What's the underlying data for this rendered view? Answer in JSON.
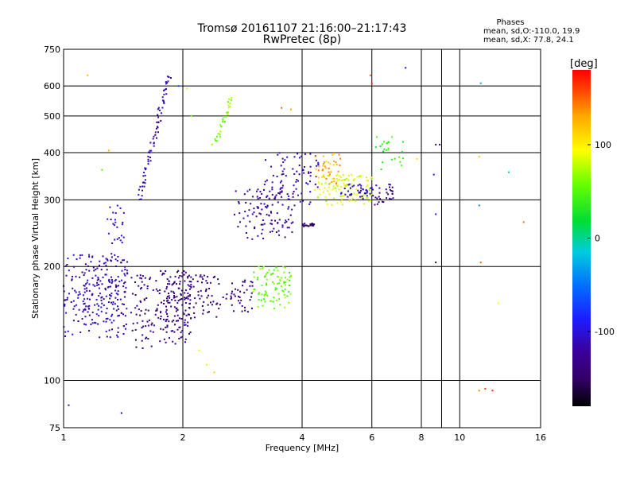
{
  "chart_data": {
    "type": "scatter",
    "title": "Tromsø 20161107 21:16:00–21:17:43",
    "subtitle": "RwPretec (8p)",
    "xlabel": "Frequency [MHz]",
    "ylabel": "Stationary phase Virtual Height [km]",
    "x_scale": "log",
    "y_scale": "log",
    "xlim": [
      1,
      16
    ],
    "ylim": [
      75,
      750
    ],
    "grid": true,
    "x_ticks": [
      1,
      2,
      4,
      6,
      8,
      10,
      16
    ],
    "x_tick_labels": [
      "1",
      "2",
      "4",
      "6",
      "8",
      "10",
      "16"
    ],
    "y_ticks": [
      75,
      100,
      200,
      300,
      400,
      500,
      600,
      750
    ],
    "y_tick_labels": [
      "75",
      "100",
      "200",
      "300",
      "400",
      "500",
      "600",
      "750"
    ],
    "stats": {
      "header": "Phases",
      "line1": "mean, sd,O:-110.0, 19.9",
      "line2": "mean, sd,X:  77.8, 24.1"
    },
    "colorbar": {
      "label": "[deg]",
      "range": [
        -180,
        180
      ],
      "ticks": [
        100,
        0,
        -100
      ],
      "tick_labels": [
        "100",
        "0",
        "-100"
      ]
    },
    "series": [
      {
        "name": "",
        "clusters": [
          {
            "x": [
              1.0,
              1.45
            ],
            "y": [
              130,
              215
            ],
            "phase": -118,
            "count": 260
          },
          {
            "x": [
              1.28,
              1.42
            ],
            "y": [
              215,
              290
            ],
            "phase": -110,
            "count": 25
          },
          {
            "x": [
              1.48,
              1.7
            ],
            "y": [
              120,
              190
            ],
            "phase": -140,
            "count": 60
          },
          {
            "x": [
              1.7,
              2.1
            ],
            "y": [
              125,
              195
            ],
            "phase": -138,
            "count": 170
          },
          {
            "x": [
              2.05,
              2.5
            ],
            "y": [
              145,
              190
            ],
            "phase": -142,
            "count": 55
          },
          {
            "x": [
              2.5,
              3.0
            ],
            "y": [
              150,
              185
            ],
            "phase": -140,
            "count": 40
          },
          {
            "x": [
              3.0,
              3.75
            ],
            "y": [
              155,
              200
            ],
            "phase": 55,
            "count": 90
          },
          {
            "x": [
              2.7,
              3.8
            ],
            "y": [
              235,
              320
            ],
            "phase": -128,
            "count": 110
          },
          {
            "x": [
              3.2,
              4.4
            ],
            "y": [
              290,
              400
            ],
            "phase": -118,
            "count": 80
          },
          {
            "x": [
              4.0,
              4.3
            ],
            "y": [
              255,
              260
            ],
            "phase": -150,
            "count": 20
          },
          {
            "x": [
              4.3,
              6.0
            ],
            "y": [
              290,
              350
            ],
            "phase": 85,
            "count": 110
          },
          {
            "x": [
              4.3,
              5.0
            ],
            "y": [
              330,
              400
            ],
            "phase": 125,
            "count": 40
          },
          {
            "x": [
              5.0,
              6.0
            ],
            "y": [
              300,
              330
            ],
            "phase": -108,
            "count": 40
          },
          {
            "x": [
              6.0,
              6.8
            ],
            "y": [
              290,
              330
            ],
            "phase": -140,
            "count": 30
          },
          {
            "x": [
              6.0,
              7.2
            ],
            "y": [
              360,
              440
            ],
            "phase": 40,
            "count": 25
          }
        ],
        "traces": [
          {
            "x": [
              1.55,
              1.85
            ],
            "y": [
              300,
              640
            ],
            "phase": -120,
            "count": 70
          },
          {
            "x": [
              2.4,
              2.65
            ],
            "y": [
              420,
              560
            ],
            "phase": 60,
            "count": 30
          }
        ],
        "points": [
          {
            "x": 1.15,
            "y": 640,
            "phase": 120
          },
          {
            "x": 1.3,
            "y": 405,
            "phase": 130
          },
          {
            "x": 1.25,
            "y": 360,
            "phase": 50
          },
          {
            "x": 1.95,
            "y": 600,
            "phase": -60
          },
          {
            "x": 2.05,
            "y": 590,
            "phase": 80
          },
          {
            "x": 2.1,
            "y": 500,
            "phase": 60
          },
          {
            "x": 2.2,
            "y": 120,
            "phase": 100
          },
          {
            "x": 2.3,
            "y": 110,
            "phase": 90
          },
          {
            "x": 2.4,
            "y": 105,
            "phase": 120
          },
          {
            "x": 1.4,
            "y": 82,
            "phase": -130
          },
          {
            "x": 1.03,
            "y": 86,
            "phase": -110
          },
          {
            "x": 3.55,
            "y": 525,
            "phase": 150
          },
          {
            "x": 3.75,
            "y": 520,
            "phase": 130
          },
          {
            "x": 5.95,
            "y": 640,
            "phase": 150
          },
          {
            "x": 6.0,
            "y": 610,
            "phase": 170
          },
          {
            "x": 7.3,
            "y": 670,
            "phase": -120
          },
          {
            "x": 8.7,
            "y": 420,
            "phase": -140
          },
          {
            "x": 8.9,
            "y": 420,
            "phase": -150
          },
          {
            "x": 8.6,
            "y": 350,
            "phase": -100
          },
          {
            "x": 8.7,
            "y": 275,
            "phase": -90
          },
          {
            "x": 8.7,
            "y": 205,
            "phase": -160
          },
          {
            "x": 11.2,
            "y": 390,
            "phase": 120
          },
          {
            "x": 11.3,
            "y": 205,
            "phase": 150
          },
          {
            "x": 11.6,
            "y": 95,
            "phase": 160
          },
          {
            "x": 12.1,
            "y": 94,
            "phase": 170
          },
          {
            "x": 11.2,
            "y": 94,
            "phase": 140
          },
          {
            "x": 11.3,
            "y": 610,
            "phase": -30
          },
          {
            "x": 13.3,
            "y": 355,
            "phase": -10
          },
          {
            "x": 14.5,
            "y": 262,
            "phase": 150
          },
          {
            "x": 12.5,
            "y": 160,
            "phase": 100
          },
          {
            "x": 11.2,
            "y": 290,
            "phase": -40
          },
          {
            "x": 7.8,
            "y": 385,
            "phase": 110
          }
        ]
      }
    ]
  }
}
